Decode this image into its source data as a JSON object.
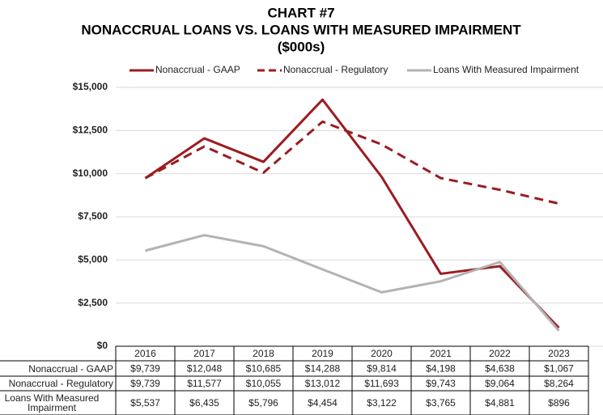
{
  "chart_data": {
    "type": "line",
    "title": "CHART #7",
    "subtitle": [
      "NONACCRUAL LOANS VS. LOANS WITH MEASURED IMPAIRMENT",
      "($000s)"
    ],
    "categories": [
      "2016",
      "2017",
      "2018",
      "2019",
      "2020",
      "2021",
      "2022",
      "2023"
    ],
    "series": [
      {
        "name": "Nonaccrual - GAAP",
        "color": "#9b1c20",
        "style": "solid",
        "values": [
          9739,
          12048,
          10685,
          14288,
          9814,
          4198,
          4638,
          1067
        ],
        "value_labels": [
          "$9,739",
          "$12,048",
          "$10,685",
          "$14,288",
          "$9,814",
          "$4,198",
          "$4,638",
          "$1,067"
        ]
      },
      {
        "name": "Nonaccrual - Regulatory",
        "color": "#9b1c20",
        "style": "dashed",
        "values": [
          9739,
          11577,
          10055,
          13012,
          11693,
          9743,
          9064,
          8264
        ],
        "value_labels": [
          "$9,739",
          "$11,577",
          "$10,055",
          "$13,012",
          "$11,693",
          "$9,743",
          "$9,064",
          "$8,264"
        ]
      },
      {
        "name": "Loans With Measured Impairment",
        "color": "#b3b3b3",
        "style": "solid",
        "values": [
          5537,
          6435,
          5796,
          4454,
          3122,
          3765,
          4881,
          896
        ],
        "value_labels": [
          "$5,537",
          "$6,435",
          "$5,796",
          "$4,454",
          "$3,122",
          "$3,765",
          "$4,881",
          "$896"
        ]
      }
    ],
    "ylim": [
      0,
      15000
    ],
    "yticks": [
      {
        "value": 0,
        "label": "$0"
      },
      {
        "value": 2500,
        "label": "$2,500"
      },
      {
        "value": 5000,
        "label": "$5,000"
      },
      {
        "value": 7500,
        "label": "$7,500"
      },
      {
        "value": 10000,
        "label": "$10,000"
      },
      {
        "value": 12500,
        "label": "$12,500"
      },
      {
        "value": 15000,
        "label": "$15,000"
      }
    ],
    "grid": true,
    "legend": "top"
  }
}
